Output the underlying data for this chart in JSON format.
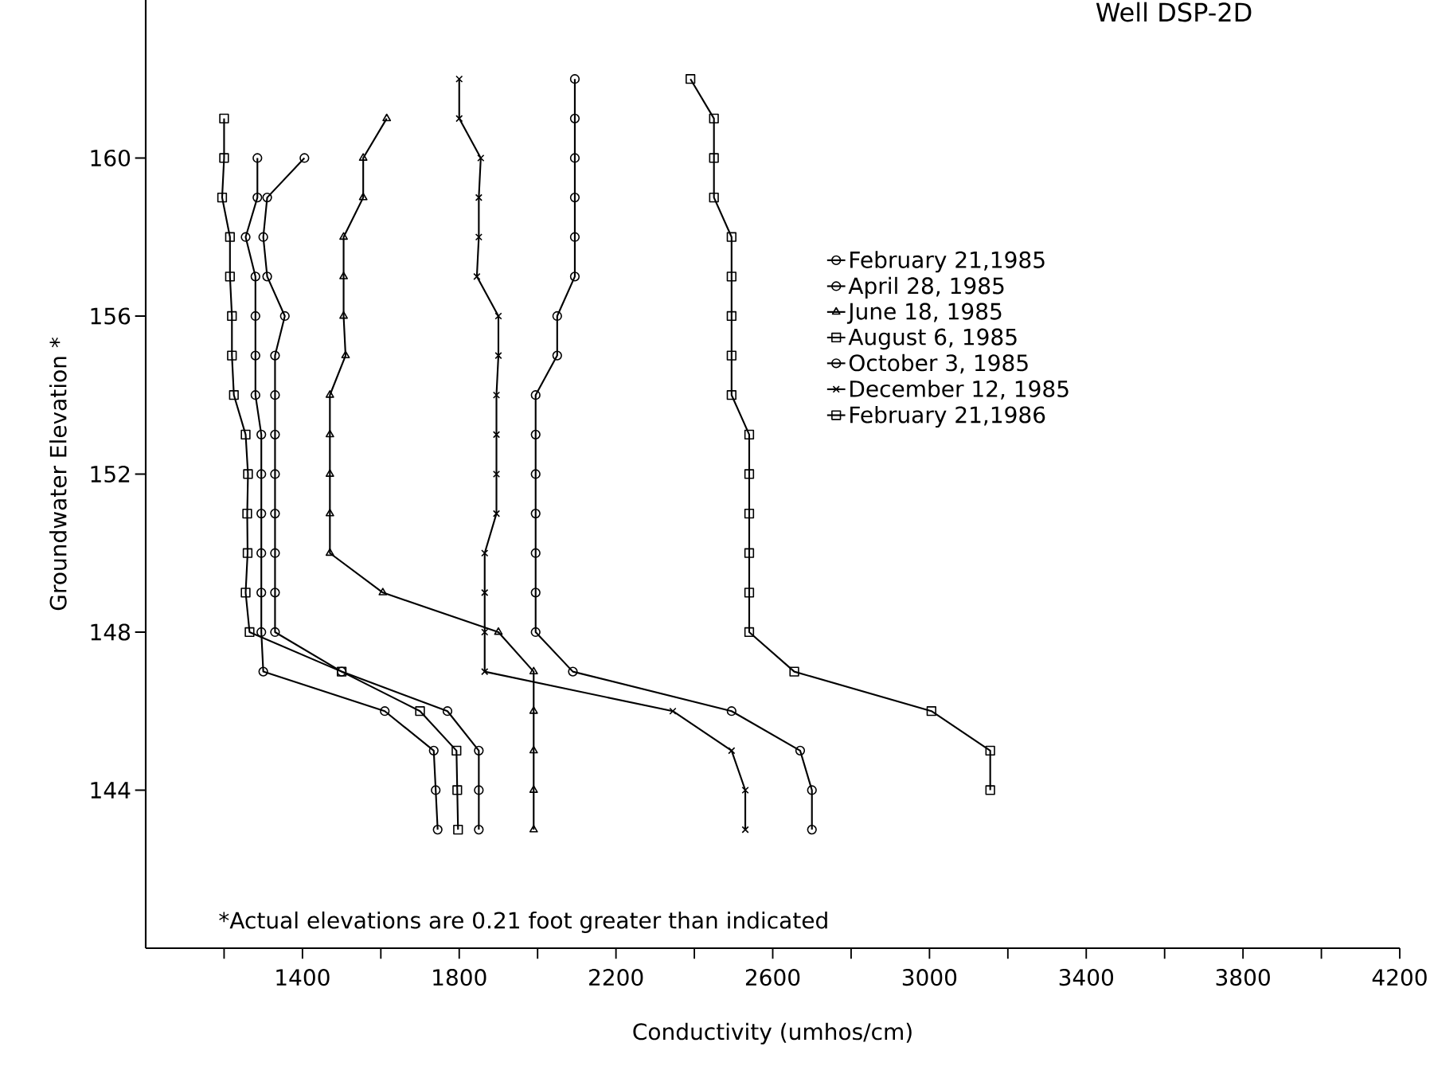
{
  "chart_data": {
    "type": "line",
    "title": "Well DSP-2D",
    "xlabel": "Conductivity (umhos/cm)",
    "ylabel": "Groundwater Elevation *",
    "annotations": [
      "*Actual elevations are 0.21 foot greater than indicated"
    ],
    "xlim": [
      1000,
      4200
    ],
    "ylim": [
      140,
      164
    ],
    "xticks": [
      {
        "value": 1200,
        "label": null
      },
      1400,
      {
        "value": 1600,
        "label": null
      },
      1800,
      {
        "value": 2000,
        "label": null
      },
      2200,
      {
        "value": 2400,
        "label": null
      },
      2600,
      {
        "value": 2800,
        "label": null
      },
      3000,
      {
        "value": 3200,
        "label": null
      },
      3400,
      {
        "value": 3600,
        "label": null
      },
      3800,
      {
        "value": 4000,
        "label": null
      },
      4200
    ],
    "yticks": [
      144,
      148,
      152,
      156,
      160
    ],
    "legend": "right",
    "line_style": "solid",
    "series": [
      {
        "name": "February 21,1985",
        "color": "#000000",
        "marker": "circle",
        "x": [
          1285,
          1285,
          1255,
          1280,
          1280,
          1280,
          1280,
          1295,
          1295,
          1295,
          1295,
          1295,
          1295,
          1300,
          1610,
          1735,
          1740,
          1745
        ],
        "values": [
          160,
          159,
          158,
          157,
          156,
          155,
          154,
          153,
          152,
          151,
          150,
          149,
          148,
          147,
          146,
          145,
          144,
          143
        ]
      },
      {
        "name": "April 28, 1985",
        "color": "#000000",
        "marker": "circle",
        "x": [
          1405,
          1310,
          1300,
          1310,
          1355,
          1330,
          1330,
          1330,
          1330,
          1330,
          1330,
          1330,
          1330,
          1500,
          1770,
          1850,
          1850,
          1850
        ],
        "values": [
          160,
          159,
          158,
          157,
          156,
          155,
          154,
          153,
          152,
          151,
          150,
          149,
          148,
          147,
          146,
          145,
          144,
          143
        ]
      },
      {
        "name": "June 18, 1985",
        "color": "#000000",
        "marker": "triangle",
        "x": [
          1615,
          1555,
          1555,
          1505,
          1505,
          1505,
          1510,
          1470,
          1470,
          1470,
          1470,
          1470,
          1605,
          1900,
          1990,
          1990,
          1990,
          1990,
          1990
        ],
        "values": [
          161,
          160,
          159,
          158,
          157,
          156,
          155,
          154,
          153,
          152,
          151,
          150,
          149,
          148,
          147,
          146,
          145,
          144,
          143
        ]
      },
      {
        "name": "August 6, 1985",
        "color": "#000000",
        "marker": "square",
        "x": [
          1200,
          1200,
          1195,
          1215,
          1215,
          1220,
          1220,
          1225,
          1255,
          1261,
          1259,
          1260,
          1255,
          1265,
          1500,
          1700,
          1793,
          1795,
          1797
        ],
        "values": [
          161,
          160,
          159,
          158,
          157,
          156,
          155,
          154,
          153,
          152,
          151,
          150,
          149,
          148,
          147,
          146,
          145,
          144,
          143
        ]
      },
      {
        "name": "October 3, 1985",
        "color": "#000000",
        "marker": "circle",
        "x": [
          2095,
          2095,
          2095,
          2095,
          2095,
          2095,
          2050,
          2050,
          1995,
          1995,
          1995,
          1995,
          1995,
          1995,
          1995,
          2090,
          2495,
          2670,
          2700,
          2700
        ],
        "values": [
          162,
          161,
          160,
          159,
          158,
          157,
          156,
          155,
          154,
          153,
          152,
          151,
          150,
          149,
          148,
          147,
          146,
          145,
          144,
          143
        ]
      },
      {
        "name": "December 12, 1985",
        "color": "#000000",
        "marker": "cross",
        "x": [
          1800,
          1800,
          1855,
          1850,
          1850,
          1845,
          1900,
          1900,
          1895,
          1895,
          1895,
          1895,
          1865,
          1865,
          1865,
          1865,
          2345,
          2495,
          2530,
          2530
        ],
        "values": [
          162,
          161,
          160,
          159,
          158,
          157,
          156,
          155,
          154,
          153,
          152,
          151,
          150,
          149,
          148,
          147,
          146,
          145,
          144,
          143
        ]
      },
      {
        "name": "February 21,1986",
        "color": "#000000",
        "marker": "square",
        "x": [
          2390,
          2450,
          2450,
          2450,
          2495,
          2495,
          2495,
          2495,
          2495,
          2540,
          2540,
          2540,
          2540,
          2540,
          2540,
          2655,
          3005,
          3155,
          3155
        ],
        "values": [
          162,
          161,
          160,
          159,
          158,
          157,
          156,
          155,
          154,
          153,
          152,
          151,
          150,
          149,
          148,
          147,
          146,
          145,
          144
        ]
      }
    ]
  }
}
